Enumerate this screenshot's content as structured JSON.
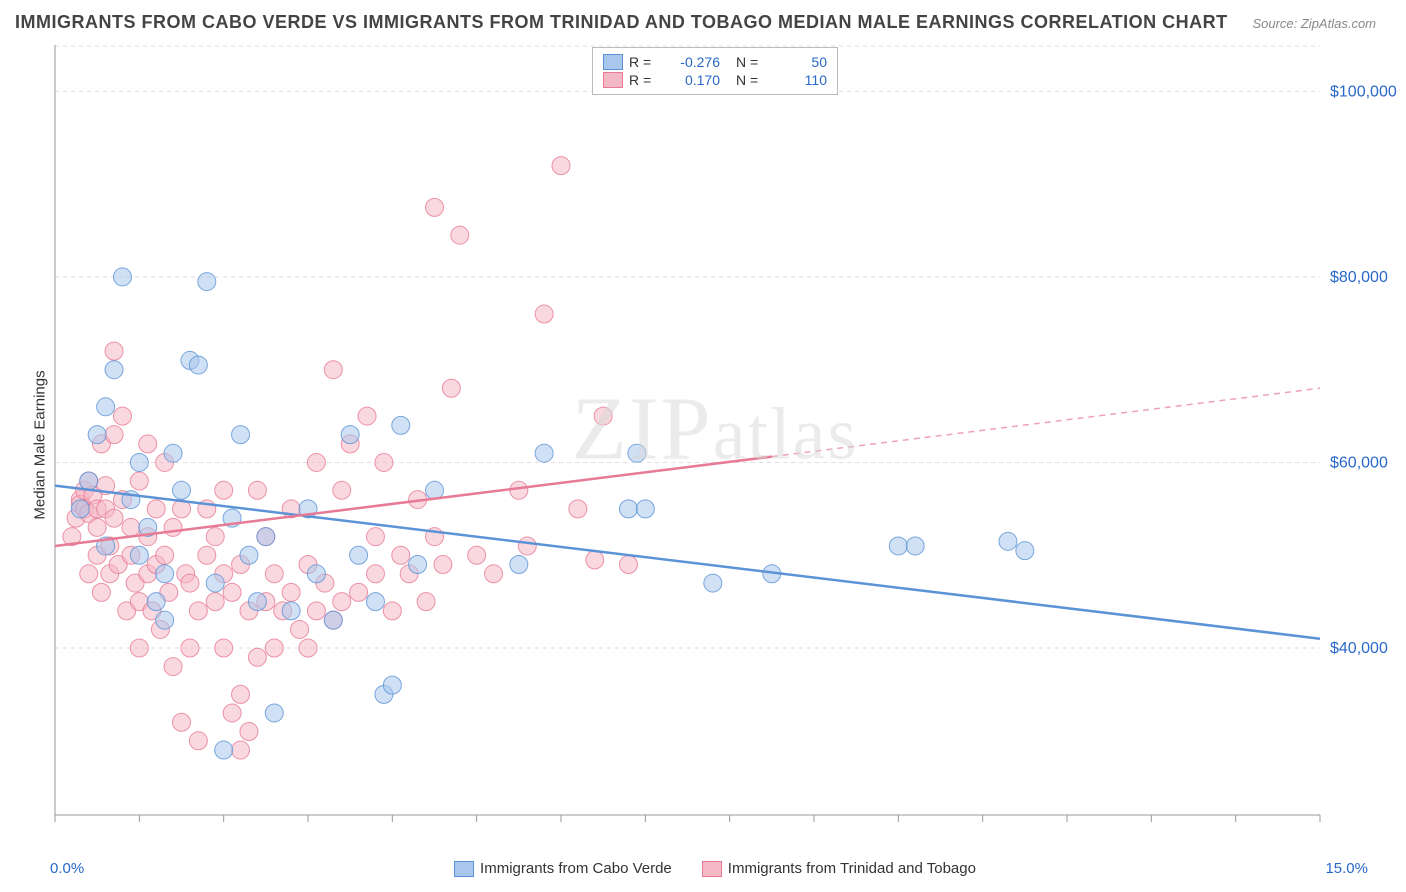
{
  "title": "IMMIGRANTS FROM CABO VERDE VS IMMIGRANTS FROM TRINIDAD AND TOBAGO MEDIAN MALE EARNINGS CORRELATION CHART",
  "source": "Source: ZipAtlas.com",
  "watermark": "ZIPatlas",
  "ylabel": "Median Male Earnings",
  "chart": {
    "type": "scatter",
    "xlim": [
      0,
      15
    ],
    "ylim": [
      22000,
      105000
    ],
    "xticks": [
      0,
      1,
      2,
      3,
      4,
      5,
      6,
      7,
      8,
      9,
      10,
      11,
      12,
      13,
      14,
      15
    ],
    "yticks": [
      40000,
      60000,
      80000,
      100000
    ],
    "ytick_labels": [
      "$40,000",
      "$60,000",
      "$80,000",
      "$100,000"
    ],
    "x_start_label": "0.0%",
    "x_end_label": "15.0%",
    "grid_color": "#dddddd",
    "axis_color": "#999999",
    "background": "#ffffff",
    "point_radius": 9,
    "point_opacity": 0.55,
    "series": [
      {
        "name": "Immigrants from Cabo Verde",
        "color_fill": "#a9c6ec",
        "color_stroke": "#5b93d6",
        "R": "-0.276",
        "N": "50",
        "regression": {
          "x1": 0,
          "y1": 57500,
          "x2": 15,
          "y2": 41000,
          "solid_until_x": 15
        },
        "points": [
          [
            0.3,
            55000
          ],
          [
            0.4,
            58000
          ],
          [
            0.5,
            63000
          ],
          [
            0.6,
            51000
          ],
          [
            0.7,
            70000
          ],
          [
            0.8,
            80000
          ],
          [
            0.9,
            56000
          ],
          [
            1.0,
            60000
          ],
          [
            1.1,
            53000
          ],
          [
            1.2,
            45000
          ],
          [
            1.3,
            48000
          ],
          [
            1.4,
            61000
          ],
          [
            1.5,
            57000
          ],
          [
            1.6,
            71000
          ],
          [
            1.7,
            70500
          ],
          [
            1.8,
            79500
          ],
          [
            1.9,
            47000
          ],
          [
            2.0,
            29000
          ],
          [
            2.1,
            54000
          ],
          [
            2.2,
            63000
          ],
          [
            2.3,
            50000
          ],
          [
            2.4,
            45000
          ],
          [
            2.5,
            52000
          ],
          [
            2.6,
            33000
          ],
          [
            2.8,
            44000
          ],
          [
            3.0,
            55000
          ],
          [
            3.1,
            48000
          ],
          [
            3.3,
            43000
          ],
          [
            3.5,
            63000
          ],
          [
            3.6,
            50000
          ],
          [
            3.8,
            45000
          ],
          [
            3.9,
            35000
          ],
          [
            4.0,
            36000
          ],
          [
            4.1,
            64000
          ],
          [
            4.3,
            49000
          ],
          [
            4.5,
            57000
          ],
          [
            5.5,
            49000
          ],
          [
            5.8,
            61000
          ],
          [
            6.8,
            55000
          ],
          [
            6.9,
            61000
          ],
          [
            7.0,
            55000
          ],
          [
            7.8,
            47000
          ],
          [
            8.5,
            48000
          ],
          [
            10.0,
            51000
          ],
          [
            10.2,
            51000
          ],
          [
            11.3,
            51500
          ],
          [
            11.5,
            50500
          ],
          [
            0.6,
            66000
          ],
          [
            1.0,
            50000
          ],
          [
            1.3,
            43000
          ]
        ]
      },
      {
        "name": "Immigrants from Trinidad and Tobago",
        "color_fill": "#f5b8c5",
        "color_stroke": "#e77a95",
        "R": "0.170",
        "N": "110",
        "regression": {
          "x1": 0,
          "y1": 51000,
          "x2": 15,
          "y2": 68000,
          "solid_until_x": 8.5
        },
        "points": [
          [
            0.2,
            52000
          ],
          [
            0.25,
            54000
          ],
          [
            0.3,
            56000
          ],
          [
            0.3,
            55500
          ],
          [
            0.35,
            55000
          ],
          [
            0.35,
            57000
          ],
          [
            0.4,
            54500
          ],
          [
            0.4,
            58000
          ],
          [
            0.4,
            48000
          ],
          [
            0.45,
            56500
          ],
          [
            0.5,
            55000
          ],
          [
            0.5,
            53000
          ],
          [
            0.5,
            50000
          ],
          [
            0.55,
            62000
          ],
          [
            0.55,
            46000
          ],
          [
            0.6,
            55000
          ],
          [
            0.6,
            57500
          ],
          [
            0.65,
            51000
          ],
          [
            0.65,
            48000
          ],
          [
            0.7,
            72000
          ],
          [
            0.7,
            63000
          ],
          [
            0.7,
            54000
          ],
          [
            0.75,
            49000
          ],
          [
            0.8,
            65000
          ],
          [
            0.8,
            56000
          ],
          [
            0.85,
            44000
          ],
          [
            0.9,
            50000
          ],
          [
            0.9,
            53000
          ],
          [
            0.95,
            47000
          ],
          [
            1.0,
            58000
          ],
          [
            1.0,
            45000
          ],
          [
            1.0,
            40000
          ],
          [
            1.1,
            62000
          ],
          [
            1.1,
            52000
          ],
          [
            1.1,
            48000
          ],
          [
            1.15,
            44000
          ],
          [
            1.2,
            55000
          ],
          [
            1.2,
            49000
          ],
          [
            1.25,
            42000
          ],
          [
            1.3,
            60000
          ],
          [
            1.3,
            50000
          ],
          [
            1.35,
            46000
          ],
          [
            1.4,
            38000
          ],
          [
            1.4,
            53000
          ],
          [
            1.5,
            32000
          ],
          [
            1.5,
            55000
          ],
          [
            1.55,
            48000
          ],
          [
            1.6,
            40000
          ],
          [
            1.6,
            47000
          ],
          [
            1.7,
            30000
          ],
          [
            1.7,
            44000
          ],
          [
            1.8,
            50000
          ],
          [
            1.8,
            55000
          ],
          [
            1.9,
            45000
          ],
          [
            1.9,
            52000
          ],
          [
            2.0,
            48000
          ],
          [
            2.0,
            40000
          ],
          [
            2.0,
            57000
          ],
          [
            2.1,
            33000
          ],
          [
            2.1,
            46000
          ],
          [
            2.2,
            35000
          ],
          [
            2.2,
            49000
          ],
          [
            2.2,
            29000
          ],
          [
            2.3,
            31000
          ],
          [
            2.3,
            44000
          ],
          [
            2.4,
            39000
          ],
          [
            2.4,
            57000
          ],
          [
            2.5,
            45000
          ],
          [
            2.5,
            52000
          ],
          [
            2.6,
            40000
          ],
          [
            2.6,
            48000
          ],
          [
            2.7,
            44000
          ],
          [
            2.8,
            46000
          ],
          [
            2.8,
            55000
          ],
          [
            2.9,
            42000
          ],
          [
            3.0,
            40000
          ],
          [
            3.0,
            49000
          ],
          [
            3.1,
            44000
          ],
          [
            3.1,
            60000
          ],
          [
            3.2,
            47000
          ],
          [
            3.3,
            43000
          ],
          [
            3.3,
            70000
          ],
          [
            3.4,
            57000
          ],
          [
            3.4,
            45000
          ],
          [
            3.5,
            62000
          ],
          [
            3.6,
            46000
          ],
          [
            3.7,
            65000
          ],
          [
            3.8,
            48000
          ],
          [
            3.8,
            52000
          ],
          [
            3.9,
            60000
          ],
          [
            4.0,
            44000
          ],
          [
            4.1,
            50000
          ],
          [
            4.2,
            48000
          ],
          [
            4.3,
            56000
          ],
          [
            4.4,
            45000
          ],
          [
            4.5,
            87500
          ],
          [
            4.5,
            52000
          ],
          [
            4.6,
            49000
          ],
          [
            4.7,
            68000
          ],
          [
            4.8,
            84500
          ],
          [
            5.0,
            50000
          ],
          [
            5.2,
            48000
          ],
          [
            5.5,
            57000
          ],
          [
            5.6,
            51000
          ],
          [
            5.8,
            76000
          ],
          [
            6.0,
            92000
          ],
          [
            6.2,
            55000
          ],
          [
            6.4,
            49500
          ],
          [
            6.5,
            65000
          ],
          [
            6.8,
            49000
          ]
        ]
      }
    ]
  },
  "legend_bottom": [
    {
      "label": "Immigrants from Cabo Verde",
      "fill": "#a9c6ec",
      "stroke": "#5b93d6"
    },
    {
      "label": "Immigrants from Trinidad and Tobago",
      "fill": "#f5b8c5",
      "stroke": "#e77a95"
    }
  ]
}
